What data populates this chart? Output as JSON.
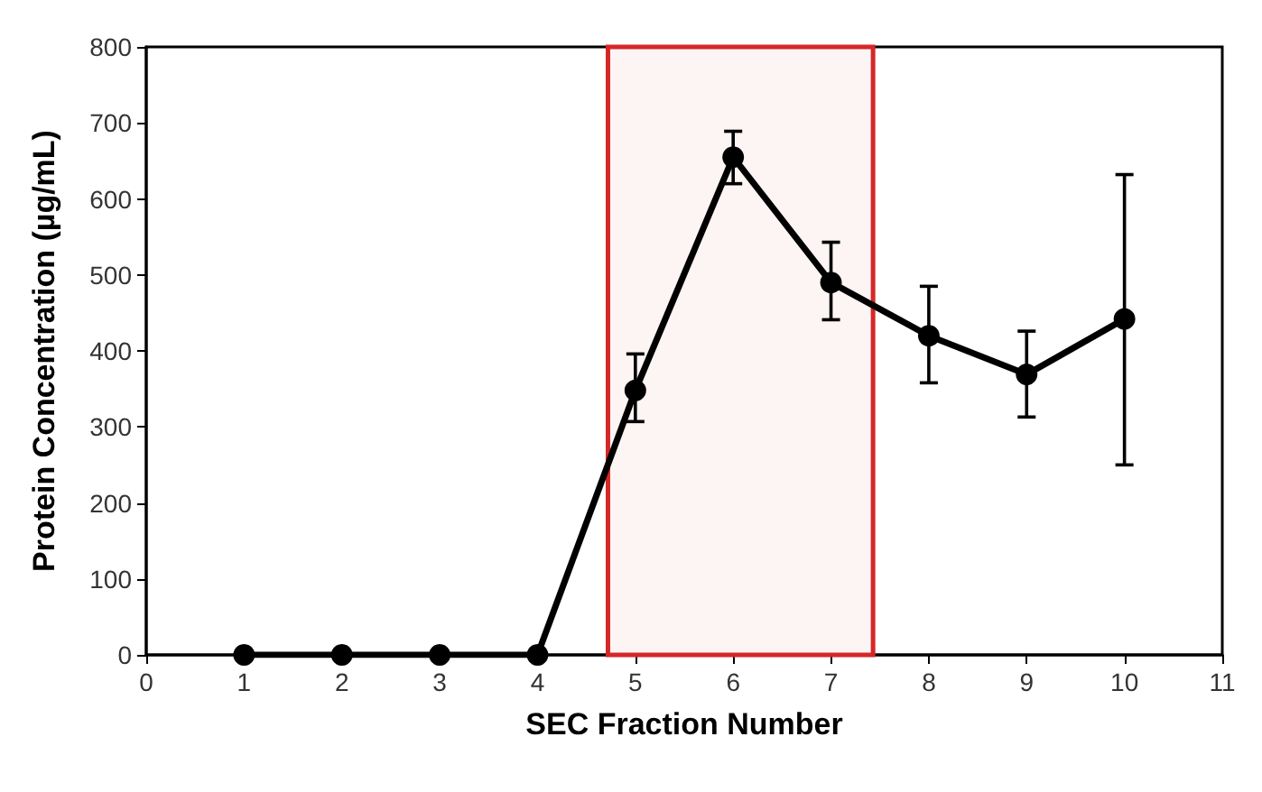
{
  "chart_data": {
    "type": "line",
    "xlabel": "SEC Fraction Number",
    "ylabel": "Protein Concentration (µg/mL)",
    "x": [
      1,
      2,
      3,
      4,
      5,
      6,
      7,
      8,
      9,
      10
    ],
    "series": [
      {
        "color": "#000000",
        "values": [
          0,
          0,
          0,
          0,
          348,
          655,
          490,
          420,
          369,
          442
        ],
        "errors": [
          null,
          null,
          null,
          null,
          [
            307,
            396
          ],
          [
            620,
            689
          ],
          [
            441,
            543
          ],
          [
            358,
            485
          ],
          [
            313,
            426
          ],
          [
            250,
            632
          ]
        ]
      }
    ],
    "xlim": [
      0,
      11
    ],
    "xticks": [
      0,
      1,
      2,
      3,
      4,
      5,
      6,
      7,
      8,
      9,
      10,
      11
    ],
    "ylim": [
      0,
      800
    ],
    "yticks": [
      0,
      100,
      200,
      300,
      400,
      500,
      600,
      700,
      800
    ],
    "bands": [
      {
        "axis": "x",
        "from": 4.72,
        "to": 7.43,
        "color": "#d62728"
      }
    ],
    "grid": false,
    "marker": "circle",
    "line_style": "solid"
  }
}
